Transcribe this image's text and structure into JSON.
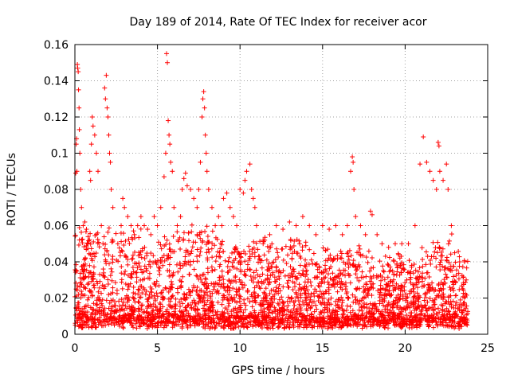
{
  "chart_data": {
    "type": "scatter",
    "title": "Day 189 of 2014, Rate Of TEC Index for receiver acor",
    "xlabel": "GPS time / hours",
    "ylabel": "ROTI / TECUs",
    "xlim": [
      0,
      25
    ],
    "ylim": [
      0,
      0.16
    ],
    "xticks": [
      0,
      5,
      10,
      15,
      20,
      25
    ],
    "xtick_labels": [
      "0",
      "5",
      "10",
      "15",
      "20",
      "25"
    ],
    "yticks": [
      0,
      0.02,
      0.04,
      0.06,
      0.08,
      0.1,
      0.12,
      0.14,
      0.16
    ],
    "ytick_labels": [
      "0",
      "0.02",
      "0.04",
      "0.06",
      "0.08",
      "0.1",
      "0.12",
      "0.14",
      "0.16"
    ],
    "grid": true,
    "marker": "+",
    "color": "#ff0000",
    "series": [
      {
        "name": "ROTI",
        "points": [
          [
            0.05,
            0.089
          ],
          [
            0.08,
            0.105
          ],
          [
            0.1,
            0.108
          ],
          [
            0.12,
            0.09
          ],
          [
            0.15,
            0.149
          ],
          [
            0.17,
            0.147
          ],
          [
            0.2,
            0.145
          ],
          [
            0.22,
            0.135
          ],
          [
            0.25,
            0.125
          ],
          [
            0.27,
            0.113
          ],
          [
            0.3,
            0.1
          ],
          [
            0.35,
            0.08
          ],
          [
            0.4,
            0.07
          ],
          [
            0.5,
            0.06
          ],
          [
            0.6,
            0.062
          ],
          [
            0.7,
            0.058
          ],
          [
            0.9,
            0.09
          ],
          [
            0.95,
            0.085
          ],
          [
            1.0,
            0.105
          ],
          [
            1.05,
            0.12
          ],
          [
            1.1,
            0.115
          ],
          [
            1.2,
            0.11
          ],
          [
            1.3,
            0.1
          ],
          [
            1.4,
            0.09
          ],
          [
            1.6,
            0.06
          ],
          [
            1.7,
            0.05
          ],
          [
            1.8,
            0.136
          ],
          [
            1.85,
            0.13
          ],
          [
            1.9,
            0.143
          ],
          [
            1.95,
            0.125
          ],
          [
            2.0,
            0.12
          ],
          [
            2.05,
            0.11
          ],
          [
            2.1,
            0.1
          ],
          [
            2.15,
            0.095
          ],
          [
            2.2,
            0.08
          ],
          [
            2.3,
            0.07
          ],
          [
            2.6,
            0.05
          ],
          [
            2.8,
            0.06
          ],
          [
            2.9,
            0.075
          ],
          [
            3.0,
            0.07
          ],
          [
            3.2,
            0.065
          ],
          [
            3.4,
            0.06
          ],
          [
            3.6,
            0.055
          ],
          [
            3.8,
            0.06
          ],
          [
            4.0,
            0.065
          ],
          [
            4.2,
            0.06
          ],
          [
            4.4,
            0.058
          ],
          [
            4.6,
            0.055
          ],
          [
            4.8,
            0.065
          ],
          [
            5.0,
            0.06
          ],
          [
            5.2,
            0.07
          ],
          [
            5.4,
            0.087
          ],
          [
            5.5,
            0.1
          ],
          [
            5.55,
            0.155
          ],
          [
            5.6,
            0.15
          ],
          [
            5.65,
            0.118
          ],
          [
            5.7,
            0.11
          ],
          [
            5.75,
            0.105
          ],
          [
            5.8,
            0.095
          ],
          [
            5.9,
            0.09
          ],
          [
            6.0,
            0.07
          ],
          [
            6.2,
            0.06
          ],
          [
            6.4,
            0.065
          ],
          [
            6.5,
            0.08
          ],
          [
            6.6,
            0.086
          ],
          [
            6.7,
            0.089
          ],
          [
            6.8,
            0.082
          ],
          [
            7.0,
            0.08
          ],
          [
            7.2,
            0.075
          ],
          [
            7.4,
            0.07
          ],
          [
            7.5,
            0.08
          ],
          [
            7.6,
            0.095
          ],
          [
            7.7,
            0.12
          ],
          [
            7.75,
            0.13
          ],
          [
            7.8,
            0.134
          ],
          [
            7.85,
            0.125
          ],
          [
            7.9,
            0.11
          ],
          [
            7.95,
            0.1
          ],
          [
            8.0,
            0.09
          ],
          [
            8.1,
            0.08
          ],
          [
            8.3,
            0.07
          ],
          [
            8.5,
            0.06
          ],
          [
            8.7,
            0.065
          ],
          [
            8.9,
            0.06
          ],
          [
            9.0,
            0.075
          ],
          [
            9.2,
            0.078
          ],
          [
            9.4,
            0.07
          ],
          [
            9.6,
            0.065
          ],
          [
            9.8,
            0.06
          ],
          [
            10.0,
            0.08
          ],
          [
            10.2,
            0.078
          ],
          [
            10.3,
            0.085
          ],
          [
            10.4,
            0.09
          ],
          [
            10.6,
            0.094
          ],
          [
            10.7,
            0.08
          ],
          [
            10.8,
            0.075
          ],
          [
            10.9,
            0.07
          ],
          [
            11.0,
            0.06
          ],
          [
            11.4,
            0.05
          ],
          [
            11.8,
            0.055
          ],
          [
            12.2,
            0.06
          ],
          [
            12.6,
            0.058
          ],
          [
            13.0,
            0.062
          ],
          [
            13.4,
            0.06
          ],
          [
            13.8,
            0.065
          ],
          [
            14.2,
            0.06
          ],
          [
            14.6,
            0.055
          ],
          [
            15.0,
            0.06
          ],
          [
            15.4,
            0.058
          ],
          [
            15.8,
            0.06
          ],
          [
            16.2,
            0.055
          ],
          [
            16.5,
            0.06
          ],
          [
            16.7,
            0.09
          ],
          [
            16.8,
            0.098
          ],
          [
            16.85,
            0.095
          ],
          [
            16.9,
            0.08
          ],
          [
            17.0,
            0.065
          ],
          [
            17.3,
            0.06
          ],
          [
            17.6,
            0.055
          ],
          [
            17.9,
            0.068
          ],
          [
            18.0,
            0.066
          ],
          [
            18.3,
            0.055
          ],
          [
            18.6,
            0.05
          ],
          [
            19.0,
            0.048
          ],
          [
            19.4,
            0.05
          ],
          [
            19.8,
            0.05
          ],
          [
            20.2,
            0.05
          ],
          [
            20.6,
            0.06
          ],
          [
            20.9,
            0.094
          ],
          [
            21.1,
            0.109
          ],
          [
            21.3,
            0.095
          ],
          [
            21.5,
            0.09
          ],
          [
            21.7,
            0.085
          ],
          [
            21.9,
            0.08
          ],
          [
            22.0,
            0.106
          ],
          [
            22.05,
            0.104
          ],
          [
            22.1,
            0.09
          ],
          [
            22.3,
            0.085
          ],
          [
            22.5,
            0.094
          ],
          [
            22.6,
            0.08
          ],
          [
            22.8,
            0.06
          ],
          [
            23.0,
            0.045
          ],
          [
            23.3,
            0.04
          ],
          [
            23.6,
            0.04
          ],
          [
            23.7,
            0.03
          ]
        ],
        "bulk": {
          "x_range": [
            0,
            23.8
          ],
          "y_floor": 0.003,
          "hourly_envelope": [
            0.055,
            0.055,
            0.055,
            0.055,
            0.045,
            0.05,
            0.055,
            0.055,
            0.055,
            0.045,
            0.05,
            0.05,
            0.045,
            0.05,
            0.045,
            0.045,
            0.045,
            0.045,
            0.04,
            0.04,
            0.035,
            0.05,
            0.05,
            0.04
          ]
        }
      }
    ]
  }
}
